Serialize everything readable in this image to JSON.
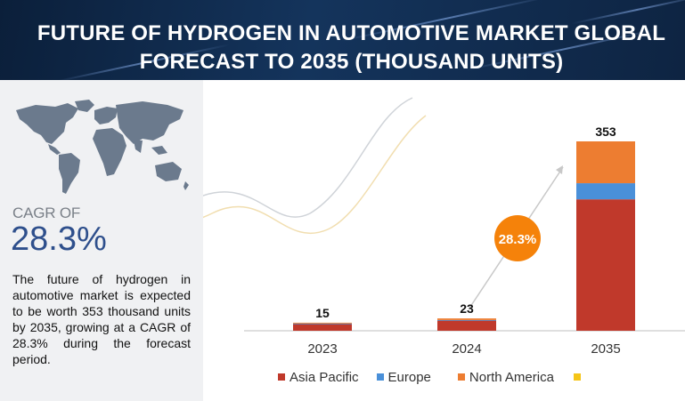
{
  "header": {
    "title": "FUTURE OF HYDROGEN IN AUTOMOTIVE MARKET GLOBAL FORECAST TO 2035 (THOUSAND UNITS)"
  },
  "left_panel": {
    "cagr_label": "CAGR OF",
    "cagr_value": "28.3%",
    "description": "The future of hydrogen in automotive market is expected to be worth 353 thousand units by 2035, growing at a CAGR of 28.3% during the forecast period."
  },
  "colors": {
    "asia_pacific": "#c0392b",
    "europe": "#4a90d9",
    "north_america": "#ed7d31",
    "fourth_series": "#f5c518",
    "cagr_bubble": "#f5820a",
    "header_bg": "#0b1f3a"
  },
  "chart_data": {
    "type": "bar",
    "stacked": true,
    "categories": [
      "2023",
      "2024",
      "2035"
    ],
    "series": [
      {
        "name": "Asia Pacific",
        "color": "#c0392b",
        "values": [
          13,
          19,
          245
        ]
      },
      {
        "name": "Europe",
        "color": "#4a90d9",
        "values": [
          0.5,
          1,
          30
        ]
      },
      {
        "name": "North America",
        "color": "#ed7d31",
        "values": [
          1.5,
          3,
          78
        ]
      },
      {
        "name": "",
        "color": "#f5c518",
        "values": [
          0,
          0,
          0
        ]
      }
    ],
    "totals": [
      "15",
      "23",
      "353"
    ],
    "annotation": "28.3%",
    "ylim": [
      0,
      353
    ],
    "grid": false,
    "legend_position": "bottom"
  }
}
